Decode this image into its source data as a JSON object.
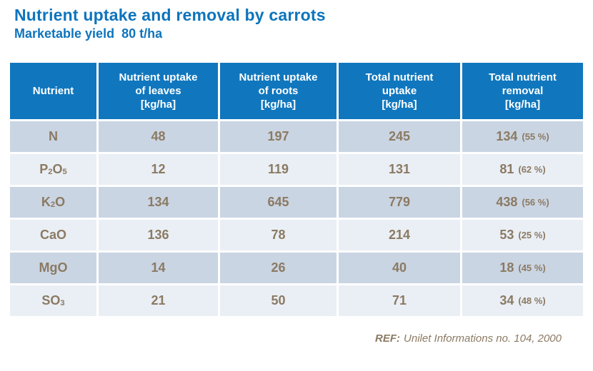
{
  "header": {
    "title": "Nutrient uptake and removal by carrots",
    "subtitle": "Marketable yield  80 t/ha"
  },
  "table": {
    "columns": [
      {
        "key": "nutrient",
        "lines": [
          "Nutrient"
        ]
      },
      {
        "key": "uptake-leaves",
        "lines": [
          "Nutrient uptake",
          "of leaves",
          "[kg/ha]"
        ]
      },
      {
        "key": "uptake-roots",
        "lines": [
          "Nutrient uptake",
          "of roots",
          "[kg/ha]"
        ]
      },
      {
        "key": "total-uptake",
        "lines": [
          "Total nutrient",
          "uptake",
          "[kg/ha]"
        ]
      },
      {
        "key": "total-removal",
        "lines": [
          "Total nutrient",
          "removal",
          "[kg/ha]"
        ]
      }
    ],
    "rows": [
      {
        "key": "N",
        "nutrient": [
          {
            "t": "N"
          }
        ],
        "leaves": "48",
        "roots": "197",
        "total": "245",
        "removal": "134",
        "removal_pct": "(55 %)"
      },
      {
        "key": "P2O5",
        "nutrient": [
          {
            "t": "P"
          },
          {
            "sub": "2"
          },
          {
            "t": "O"
          },
          {
            "sub": "5"
          }
        ],
        "leaves": "12",
        "roots": "119",
        "total": "131",
        "removal": "81",
        "removal_pct": "(62 %)"
      },
      {
        "key": "K2O",
        "nutrient": [
          {
            "t": "K"
          },
          {
            "sub": "2"
          },
          {
            "t": "O"
          }
        ],
        "leaves": "134",
        "roots": "645",
        "total": "779",
        "removal": "438",
        "removal_pct": "(56 %)"
      },
      {
        "key": "CaO",
        "nutrient": [
          {
            "t": "CaO"
          }
        ],
        "leaves": "136",
        "roots": "78",
        "total": "214",
        "removal": "53",
        "removal_pct": "(25 %)"
      },
      {
        "key": "MgO",
        "nutrient": [
          {
            "t": "MgO"
          }
        ],
        "leaves": "14",
        "roots": "26",
        "total": "40",
        "removal": "18",
        "removal_pct": "(45 %)"
      },
      {
        "key": "SO3",
        "nutrient": [
          {
            "t": "SO"
          },
          {
            "sub": "3"
          }
        ],
        "leaves": "21",
        "roots": "50",
        "total": "71",
        "removal": "34",
        "removal_pct": "(48 %)"
      }
    ]
  },
  "footer": {
    "ref_label": "REF:",
    "ref_text": "Unilet Informations no. 104, 2000"
  },
  "colors": {
    "title_blue": "#0e74bc",
    "header_bg": "#1077be",
    "header_text": "#ffffff",
    "row_dark": "#cad5e3",
    "row_light": "#eaeff5",
    "cell_text": "#8b7a63",
    "page_bg": "#ffffff"
  }
}
